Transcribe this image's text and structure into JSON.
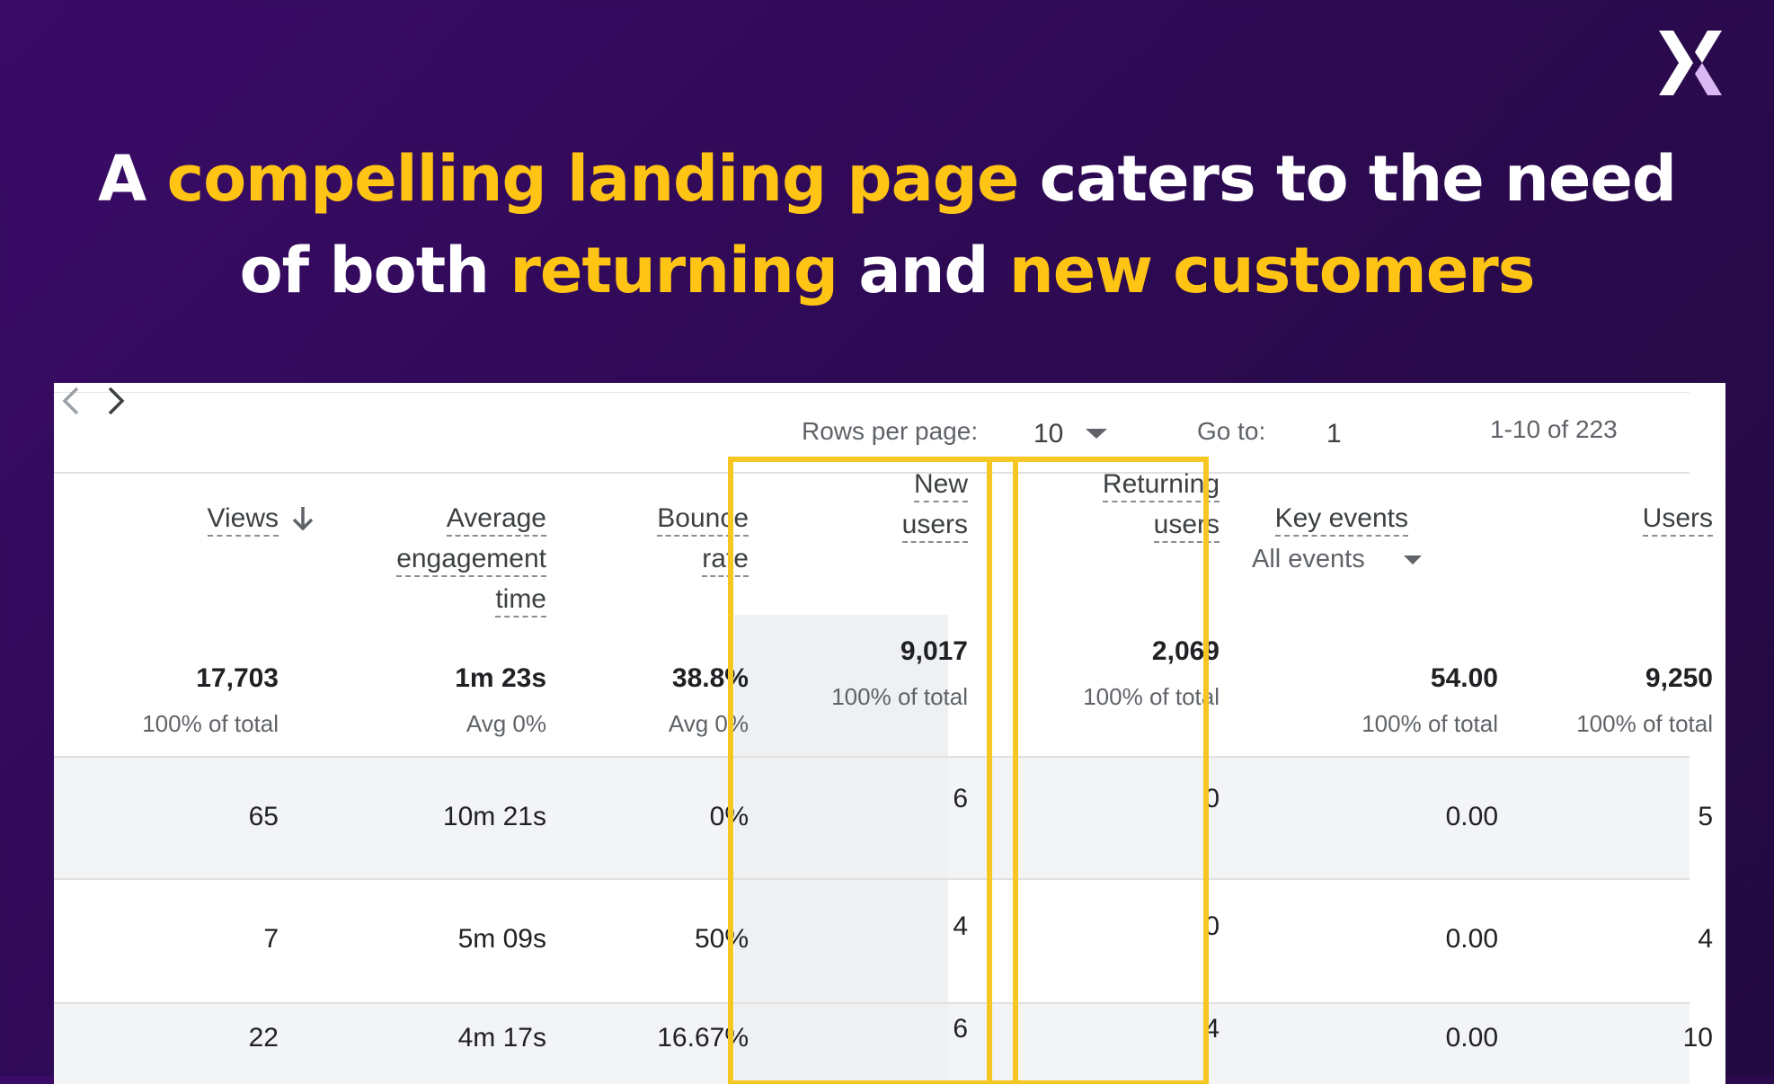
{
  "headline": {
    "segments": [
      {
        "text": "A ",
        "highlight": false
      },
      {
        "text": "compelling landing page",
        "highlight": true
      },
      {
        "text": " caters to the need",
        "highlight": false
      },
      {
        "text": "of both ",
        "highlight": false
      },
      {
        "text": "returning",
        "highlight": true
      },
      {
        "text": " and ",
        "highlight": false
      },
      {
        "text": "new customers",
        "highlight": true
      }
    ]
  },
  "logo": {
    "icon": "x-logo-icon"
  },
  "colors": {
    "background": "#2b0a4f",
    "highlight_text": "#ffc414",
    "highlight_box": "#f6c623"
  },
  "pagination": {
    "rows_per_page_label": "Rows per page:",
    "rows_per_page_value": "10",
    "go_to_label": "Go to:",
    "go_to_value": "1",
    "range": "1-10 of 223"
  },
  "columns": {
    "views": {
      "lines": [
        "Views"
      ]
    },
    "avg_engagement": {
      "lines": [
        "Average",
        "engagement",
        "time"
      ]
    },
    "bounce_rate": {
      "lines": [
        "Bounce",
        "rate"
      ]
    },
    "new_users": {
      "lines": [
        "New",
        "users"
      ]
    },
    "returning_users": {
      "lines": [
        "Returning",
        "users"
      ]
    },
    "key_events": {
      "lines": [
        "Key events"
      ],
      "selector": "All events"
    },
    "users": {
      "lines": [
        "Users"
      ]
    }
  },
  "totals": {
    "views": {
      "value": "17,703",
      "sub": "100% of total"
    },
    "avg_engagement": {
      "value": "1m 23s",
      "sub": "Avg 0%"
    },
    "bounce_rate": {
      "value": "38.8%",
      "sub": "Avg 0%"
    },
    "new_users": {
      "value": "9,017",
      "sub": "100% of total"
    },
    "returning_users": {
      "value": "2,069",
      "sub": "100% of total"
    },
    "key_events": {
      "value": "54.00",
      "sub": "100% of total"
    },
    "users": {
      "value": "9,250",
      "sub": "100% of total"
    }
  },
  "rows": [
    {
      "views": "65",
      "avg_engagement": "10m 21s",
      "bounce_rate": "0%",
      "new_users": "6",
      "returning_users": "0",
      "key_events": "0.00",
      "users": "5"
    },
    {
      "views": "7",
      "avg_engagement": "5m 09s",
      "bounce_rate": "50%",
      "new_users": "4",
      "returning_users": "0",
      "key_events": "0.00",
      "users": "4"
    },
    {
      "views": "22",
      "avg_engagement": "4m 17s",
      "bounce_rate": "16.67%",
      "new_users": "6",
      "returning_users": "4",
      "key_events": "0.00",
      "users": "10"
    }
  ]
}
